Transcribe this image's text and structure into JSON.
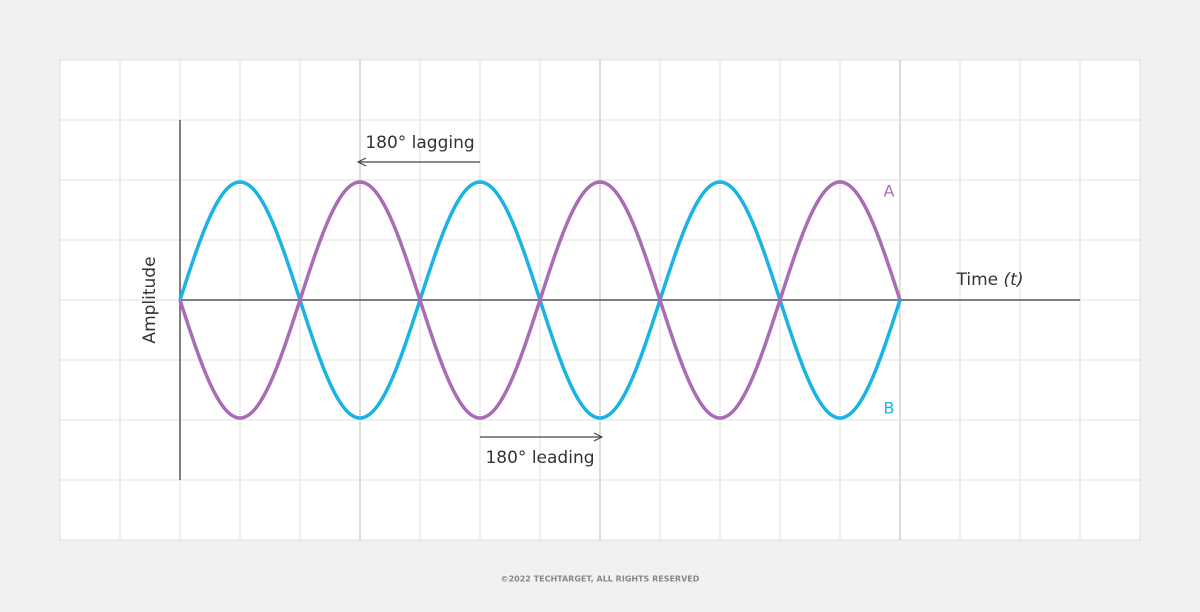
{
  "diagram": {
    "lagging_label": "180° lagging",
    "leading_label": "180° leading",
    "wave_a_label": "A",
    "wave_b_label": "B",
    "y_axis_label": "Amplitude",
    "x_axis_label": "Time",
    "x_axis_symbol": "(t)"
  },
  "footer": {
    "copyright": "©2022 TECHTARGET, ALL RIGHTS RESERVED"
  }
}
